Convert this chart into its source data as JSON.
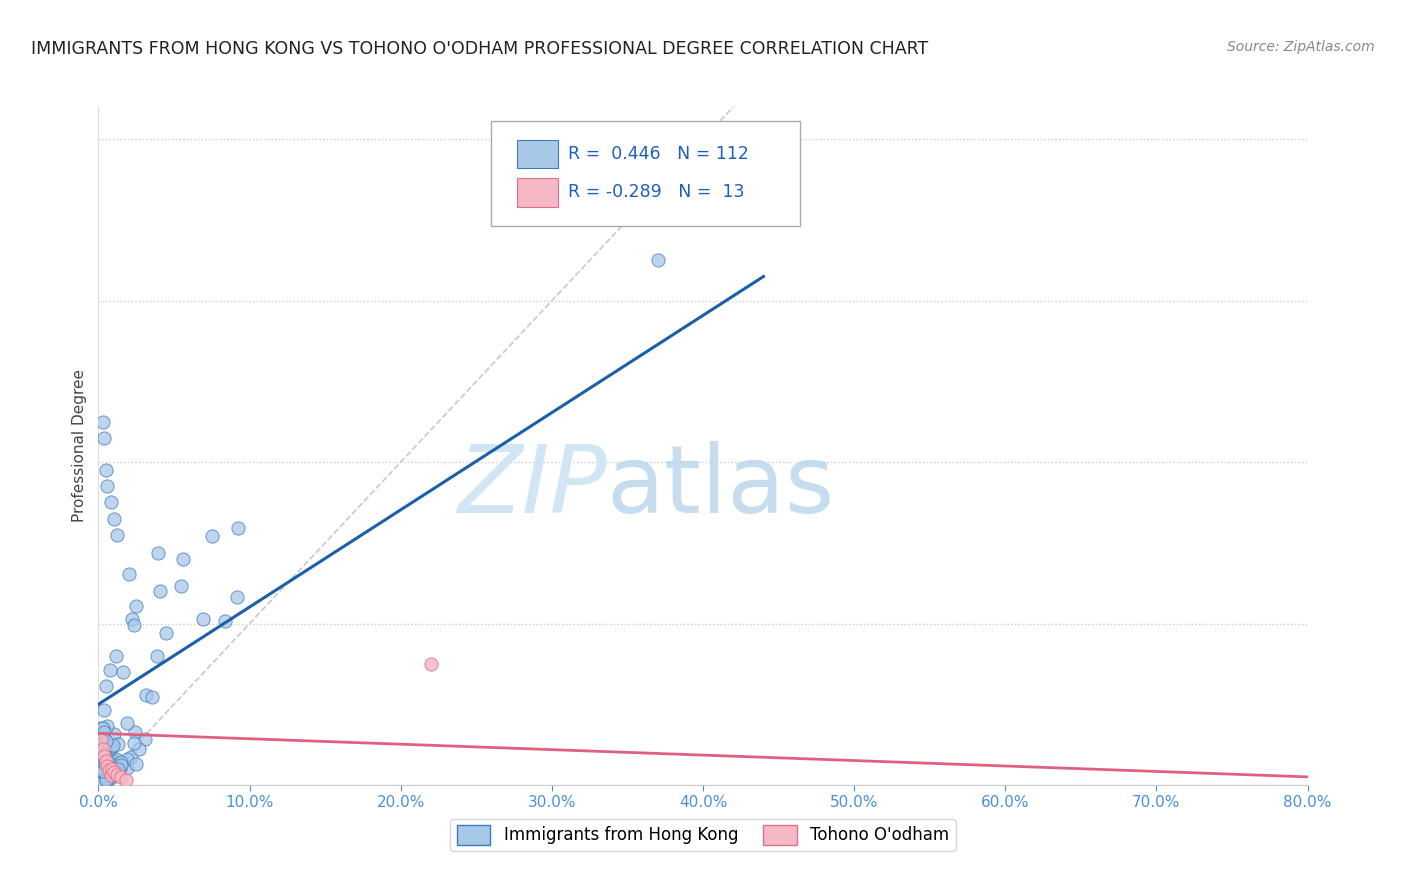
{
  "title": "IMMIGRANTS FROM HONG KONG VS TOHONO O'ODHAM PROFESSIONAL DEGREE CORRELATION CHART",
  "source": "Source: ZipAtlas.com",
  "ylabel": "Professional Degree",
  "xlim": [
    0.0,
    0.8
  ],
  "ylim": [
    0.0,
    0.42
  ],
  "R_blue": 0.446,
  "N_blue": 112,
  "R_pink": -0.289,
  "N_pink": 13,
  "blue_scatter_color": "#a8c8e8",
  "blue_edge_color": "#3a7abf",
  "pink_scatter_color": "#f5b8c4",
  "pink_edge_color": "#e07090",
  "blue_line_color": "#1a5faa",
  "pink_line_color": "#e06080",
  "diag_line_color": "#bbbbbb",
  "grid_color": "#cccccc",
  "legend_label_blue": "Immigrants from Hong Kong",
  "legend_label_pink": "Tohono O'odham",
  "background_color": "#ffffff",
  "tick_color": "#4a90d9",
  "title_color": "#222222",
  "source_color": "#888888",
  "ylabel_color": "#444444",
  "blue_line_x": [
    0.0,
    0.44
  ],
  "blue_line_y": [
    0.05,
    0.315
  ],
  "pink_line_x": [
    0.0,
    0.8
  ],
  "pink_line_y": [
    0.032,
    0.005
  ],
  "diag_line_x": [
    0.0,
    0.42
  ],
  "diag_line_y": [
    0.0,
    0.42
  ],
  "watermark_zip_color": "#cce0f0",
  "watermark_atlas_color": "#b0cce0"
}
